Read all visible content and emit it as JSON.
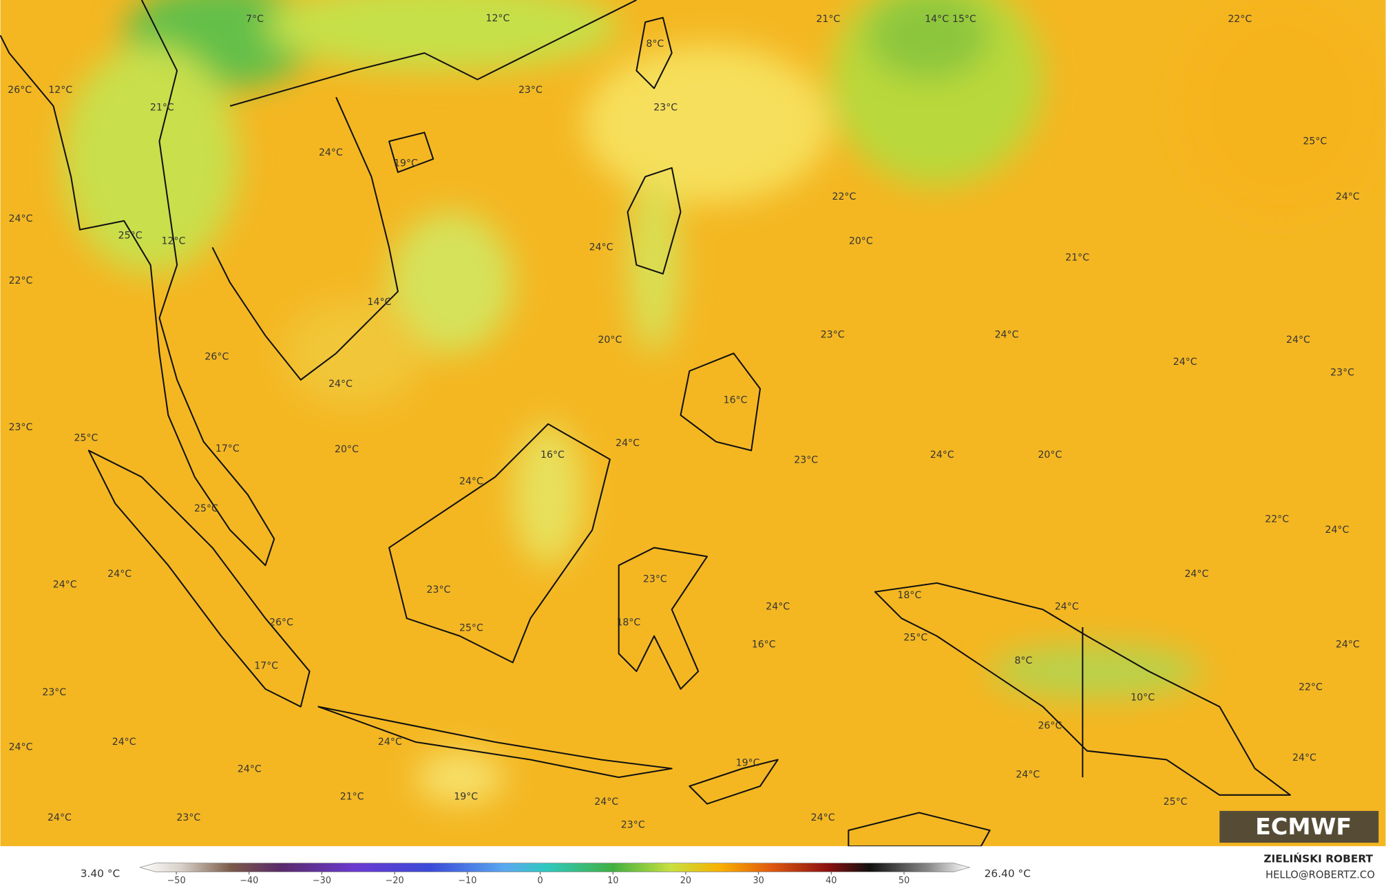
{
  "map": {
    "labels": [
      "7°C",
      "12°C",
      "21°C",
      "14°C",
      "15°C",
      "22°C",
      "8°C",
      "26°C",
      "12°C",
      "23°C",
      "21°C",
      "23°C",
      "25°C",
      "24°C",
      "19°C",
      "22°C",
      "24°C",
      "24°C",
      "25°C",
      "12°C",
      "20°C",
      "24°C",
      "21°C",
      "22°C",
      "14°C",
      "20°C",
      "23°C",
      "24°C",
      "24°C",
      "26°C",
      "24°C",
      "24°C",
      "23°C",
      "16°C",
      "23°C",
      "25°C",
      "17°C",
      "20°C",
      "24°C",
      "16°C",
      "23°C",
      "24°C",
      "20°C",
      "24°C",
      "25°C",
      "22°C",
      "24°C",
      "24°C",
      "24°C",
      "23°C",
      "24°C",
      "23°C",
      "18°C",
      "24°C",
      "24°C",
      "26°C",
      "25°C",
      "18°C",
      "25°C",
      "16°C",
      "24°C",
      "8°C",
      "17°C",
      "23°C",
      "22°C",
      "10°C",
      "24°C",
      "24°C",
      "26°C",
      "24°C",
      "19°C",
      "24°C",
      "24°C",
      "24°C",
      "21°C",
      "19°C",
      "24°C",
      "25°C",
      "24°C",
      "23°C",
      "24°C",
      "23°C"
    ]
  },
  "colorbar": {
    "min_label": "3.40 °C",
    "max_label": "26.40 °C",
    "lim": [
      -55,
      59
    ],
    "ticks": [
      {
        "value": -50,
        "label": "−50"
      },
      {
        "value": -40,
        "label": "−40"
      },
      {
        "value": -30,
        "label": "−30"
      },
      {
        "value": -20,
        "label": "−20"
      },
      {
        "value": -10,
        "label": "−10"
      },
      0,
      10,
      20,
      30,
      40,
      50
    ]
  },
  "credit": {
    "name": "ZIELIŃSKI ROBERT",
    "contact": "HELLO@ROBERTZ.CO"
  },
  "logo": "ECMWF"
}
